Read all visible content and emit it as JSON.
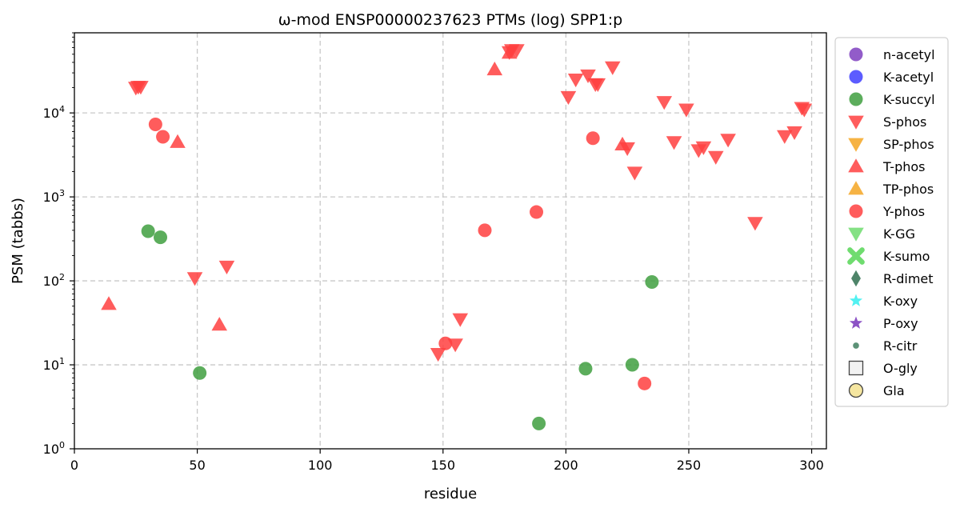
{
  "chart_data": {
    "type": "scatter",
    "title": "ω-mod ENSP00000237623 PTMs (log) SPP1:p",
    "xlabel": "residue",
    "ylabel": "PSM (tabbs)",
    "xlim": [
      0,
      306
    ],
    "ylim": [
      1,
      90000
    ],
    "yscale": "log",
    "grid": true,
    "legend_position": "right-outside",
    "x_ticks": [
      0,
      50,
      100,
      150,
      200,
      250,
      300
    ],
    "x_tick_labels": [
      "0",
      "50",
      "100",
      "150",
      "200",
      "250",
      "300"
    ],
    "y_ticks": [
      1,
      10,
      100,
      1000,
      10000
    ],
    "y_tick_labels": [
      "10^0",
      "10^1",
      "10^2",
      "10^3",
      "10^4"
    ],
    "series": [
      {
        "name": "n-acetyl",
        "marker": "circle",
        "color": "#7f3fbf",
        "points": []
      },
      {
        "name": "K-acetyl",
        "marker": "circle",
        "color": "#3f3fff",
        "points": []
      },
      {
        "name": "K-succyl",
        "marker": "circle",
        "color": "#3f9f3f",
        "points": [
          [
            30,
            390
          ],
          [
            35,
            330
          ],
          [
            51,
            8
          ],
          [
            189,
            2
          ],
          [
            208,
            9
          ],
          [
            227,
            10
          ],
          [
            235,
            97
          ]
        ]
      },
      {
        "name": "S-phos",
        "marker": "triangle-down",
        "color": "#ff3f3f",
        "points": [
          [
            25,
            20000
          ],
          [
            26,
            20500
          ],
          [
            27,
            20500
          ],
          [
            49,
            108
          ],
          [
            62,
            148
          ],
          [
            148,
            13.5
          ],
          [
            155,
            17.5
          ],
          [
            157,
            35
          ],
          [
            177,
            53000
          ],
          [
            178,
            56000
          ],
          [
            180,
            56000
          ],
          [
            201,
            15500
          ],
          [
            204,
            25000
          ],
          [
            209,
            28000
          ],
          [
            212,
            22000
          ],
          [
            213,
            22000
          ],
          [
            219,
            35000
          ],
          [
            225,
            3800
          ],
          [
            228,
            1950
          ],
          [
            240,
            13500
          ],
          [
            244,
            4500
          ],
          [
            249,
            11000
          ],
          [
            254,
            3600
          ],
          [
            256,
            3900
          ],
          [
            261,
            3000
          ],
          [
            266,
            4800
          ],
          [
            277,
            490
          ],
          [
            289,
            5300
          ],
          [
            293,
            5900
          ],
          [
            296,
            11500
          ],
          [
            297,
            11000
          ]
        ]
      },
      {
        "name": "SP-phos",
        "marker": "triangle-down",
        "color": "#f5a623",
        "points": []
      },
      {
        "name": "T-phos",
        "marker": "triangle-up",
        "color": "#ff3f3f",
        "points": [
          [
            14,
            53
          ],
          [
            42,
            4500
          ],
          [
            59,
            30
          ],
          [
            171,
            33000
          ],
          [
            177,
            52000
          ],
          [
            223,
            4200
          ]
        ]
      },
      {
        "name": "TP-phos",
        "marker": "triangle-up",
        "color": "#f5a623",
        "points": []
      },
      {
        "name": "Y-phos",
        "marker": "circle",
        "color": "#ff3f3f",
        "points": [
          [
            33,
            7300
          ],
          [
            36,
            5200
          ],
          [
            151,
            18
          ],
          [
            167,
            400
          ],
          [
            188,
            660
          ],
          [
            211,
            5000
          ],
          [
            232,
            6
          ]
        ]
      },
      {
        "name": "K-GG",
        "marker": "triangle-down",
        "color": "#6fdc6f",
        "points": []
      },
      {
        "name": "K-sumo",
        "marker": "x",
        "color": "#6fdc6f",
        "points": []
      },
      {
        "name": "R-dimet",
        "marker": "diamond",
        "color": "#2f6f4f",
        "points": []
      },
      {
        "name": "K-oxy",
        "marker": "star",
        "color": "#3fefef",
        "points": []
      },
      {
        "name": "P-oxy",
        "marker": "star",
        "color": "#7f3fbf",
        "points": []
      },
      {
        "name": "R-citr",
        "marker": "small-circle",
        "color": "#3f7f5f",
        "points": []
      },
      {
        "name": "O-gly",
        "marker": "square",
        "color": "#f2f2f2",
        "points": []
      },
      {
        "name": "Gla",
        "marker": "circle-outline",
        "color": "#f5e6a0",
        "points": []
      }
    ]
  }
}
